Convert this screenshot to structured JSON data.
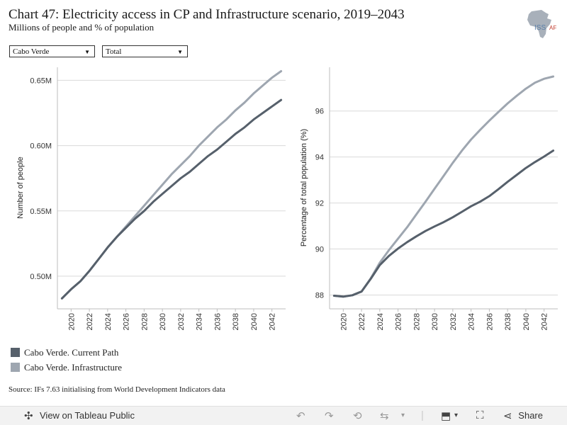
{
  "header": {
    "title": "Chart 47: Electricity access in CP and Infrastructure scenario, 2019–2043",
    "subtitle": "Millions of people and % of population",
    "logo_text": "ISS",
    "logo_text2": "AF"
  },
  "filters": {
    "country": "Cabo Verde",
    "type": "Total"
  },
  "legend": {
    "items": [
      {
        "label": "Cabo Verde. Current Path",
        "color": "#56606b"
      },
      {
        "label": "Cabo Verde. Infrastructure",
        "color": "#9ea6b0"
      }
    ]
  },
  "source": "Source: IFs 7.63 initialising from World Development Indicators data",
  "footer": {
    "view_label": "View on Tableau Public",
    "share_label": "Share"
  },
  "chart_data": [
    {
      "type": "line",
      "ylabel": "Number of people",
      "ylim": [
        0.475,
        0.66
      ],
      "yticks": [
        0.5,
        0.55,
        0.6,
        0.65
      ],
      "ytick_labels": [
        "0.50M",
        "0.55M",
        "0.60M",
        "0.65M"
      ],
      "xlim": [
        2018.5,
        2043.5
      ],
      "xticks": [
        2020,
        2022,
        2024,
        2026,
        2028,
        2030,
        2032,
        2034,
        2036,
        2038,
        2040,
        2042
      ],
      "grid": true,
      "x": [
        2019,
        2020,
        2021,
        2022,
        2023,
        2024,
        2025,
        2026,
        2027,
        2028,
        2029,
        2030,
        2031,
        2032,
        2033,
        2034,
        2035,
        2036,
        2037,
        2038,
        2039,
        2040,
        2041,
        2042,
        2043
      ],
      "series": [
        {
          "name": "Cabo Verde. Current Path",
          "color": "#56606b",
          "values": [
            0.483,
            0.49,
            0.496,
            0.504,
            0.513,
            0.522,
            0.53,
            0.537,
            0.544,
            0.55,
            0.557,
            0.563,
            0.569,
            0.575,
            0.58,
            0.586,
            0.592,
            0.597,
            0.603,
            0.609,
            0.614,
            0.62,
            0.625,
            0.63,
            0.635
          ]
        },
        {
          "name": "Cabo Verde. Infrastructure",
          "color": "#9ea6b0",
          "values": [
            0.483,
            0.49,
            0.496,
            0.504,
            0.513,
            0.522,
            0.53,
            0.538,
            0.546,
            0.554,
            0.562,
            0.57,
            0.578,
            0.585,
            0.592,
            0.6,
            0.607,
            0.614,
            0.62,
            0.627,
            0.633,
            0.64,
            0.646,
            0.652,
            0.657
          ]
        }
      ]
    },
    {
      "type": "line",
      "ylabel": "Percentage of total population (%)",
      "ylim": [
        87.4,
        97.9
      ],
      "yticks": [
        88,
        90,
        92,
        94,
        96
      ],
      "ytick_labels": [
        "88",
        "90",
        "92",
        "94",
        "96"
      ],
      "xlim": [
        2018.5,
        2043.5
      ],
      "xticks": [
        2020,
        2022,
        2024,
        2026,
        2028,
        2030,
        2032,
        2034,
        2036,
        2038,
        2040,
        2042
      ],
      "grid": true,
      "x": [
        2019,
        2020,
        2021,
        2022,
        2023,
        2024,
        2025,
        2026,
        2027,
        2028,
        2029,
        2030,
        2031,
        2032,
        2033,
        2034,
        2035,
        2036,
        2037,
        2038,
        2039,
        2040,
        2041,
        2042,
        2043
      ],
      "series": [
        {
          "name": "Cabo Verde. Current Path",
          "color": "#56606b",
          "values": [
            87.97,
            87.93,
            87.99,
            88.15,
            88.7,
            89.3,
            89.7,
            90.02,
            90.3,
            90.55,
            90.78,
            90.98,
            91.17,
            91.38,
            91.62,
            91.86,
            92.06,
            92.3,
            92.6,
            92.92,
            93.22,
            93.52,
            93.78,
            94.02,
            94.28
          ]
        },
        {
          "name": "Cabo Verde. Infrastructure",
          "color": "#9ea6b0",
          "values": [
            87.97,
            87.93,
            87.99,
            88.15,
            88.72,
            89.4,
            89.95,
            90.45,
            90.95,
            91.5,
            92.05,
            92.62,
            93.18,
            93.75,
            94.28,
            94.76,
            95.18,
            95.58,
            95.96,
            96.33,
            96.66,
            96.97,
            97.23,
            97.4,
            97.5
          ]
        }
      ]
    }
  ]
}
